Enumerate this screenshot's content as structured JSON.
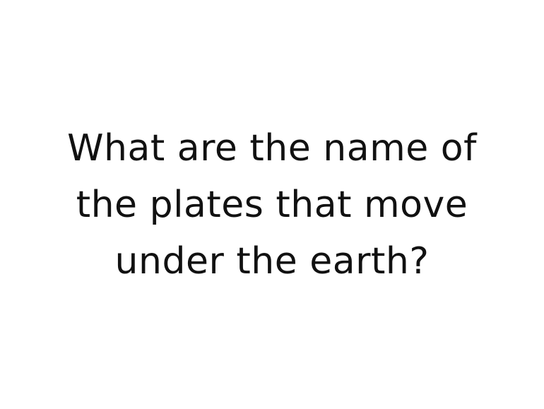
{
  "slide": {
    "question_lines": [
      "What are the name of",
      "the plates that move",
      "under the earth?"
    ],
    "text_color": "#111111",
    "background_color": "#ffffff"
  }
}
